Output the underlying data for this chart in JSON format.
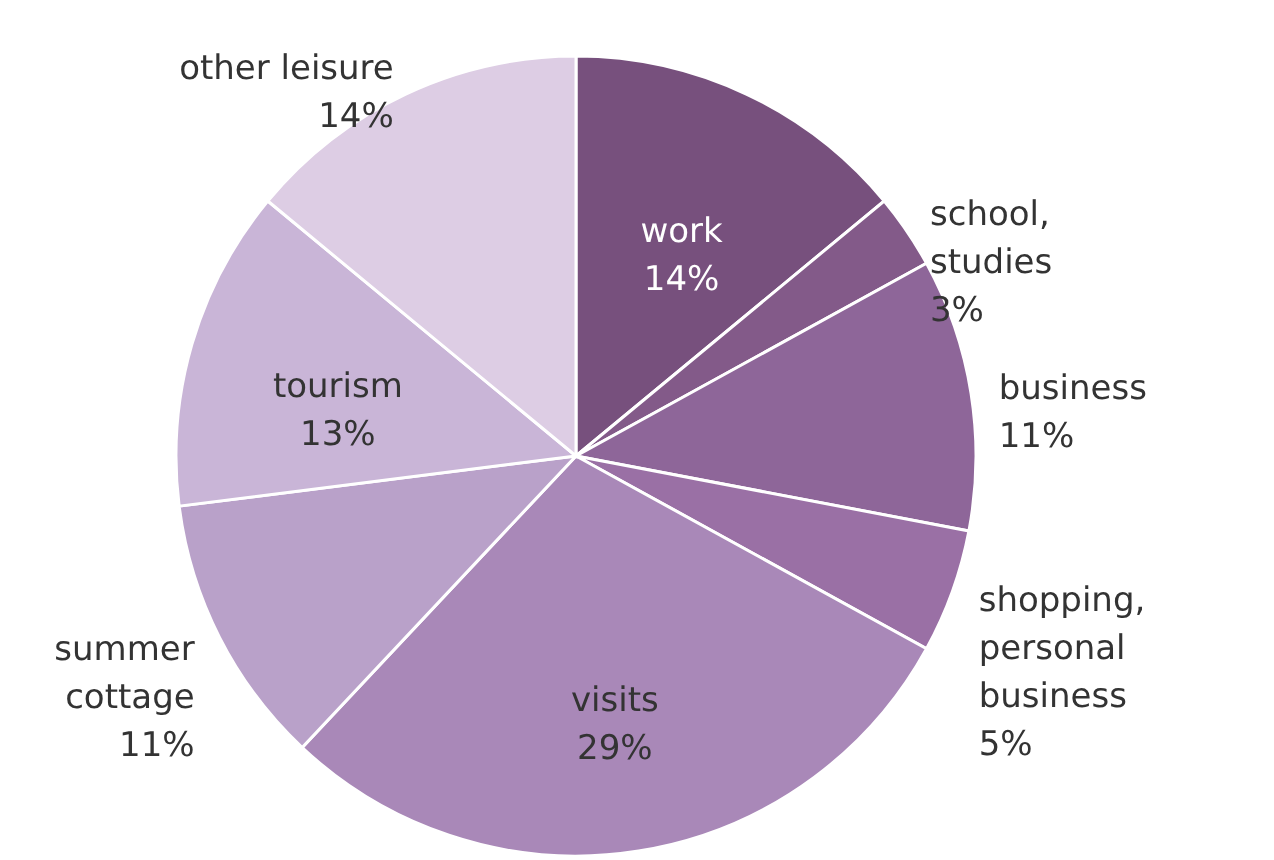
{
  "chart_data": {
    "type": "pie",
    "categories": [
      "work",
      "school, studies",
      "business",
      "shopping, personal business",
      "visits",
      "summer cottage",
      "tourism",
      "other leisure"
    ],
    "values": [
      14,
      3,
      11,
      5,
      29,
      11,
      13,
      14
    ],
    "value_labels": [
      "14%",
      "3%",
      "11%",
      "5%",
      "29%",
      "11%",
      "13%",
      "14%"
    ],
    "colors": [
      "#77507d",
      "#835a89",
      "#8e6699",
      "#9a70a5",
      "#a988b8",
      "#b9a1c9",
      "#c9b5d7",
      "#ddcde4"
    ]
  }
}
